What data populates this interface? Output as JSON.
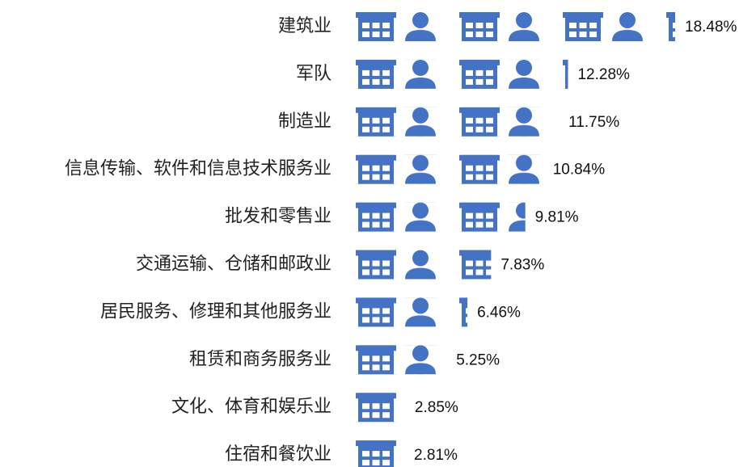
{
  "chart_data": {
    "type": "pictograph",
    "categories": [
      "建筑业",
      "军队",
      "制造业",
      "信息传输、软件和信息技术服务业",
      "批发和零售业",
      "交通运输、仓储和邮政业",
      "居民服务、修理和其他服务业",
      "租赁和商务服务业",
      "文化、体育和娱乐业",
      "住宿和餐饮业"
    ],
    "values": [
      18.48,
      12.28,
      11.75,
      10.84,
      9.81,
      7.83,
      6.46,
      5.25,
      2.85,
      2.81
    ],
    "value_labels": [
      "18.48%",
      "12.28%",
      "11.75%",
      "10.84%",
      "9.81%",
      "7.83%",
      "6.46%",
      "5.25%",
      "2.85%",
      "2.81%"
    ],
    "color": "#4472c4"
  }
}
